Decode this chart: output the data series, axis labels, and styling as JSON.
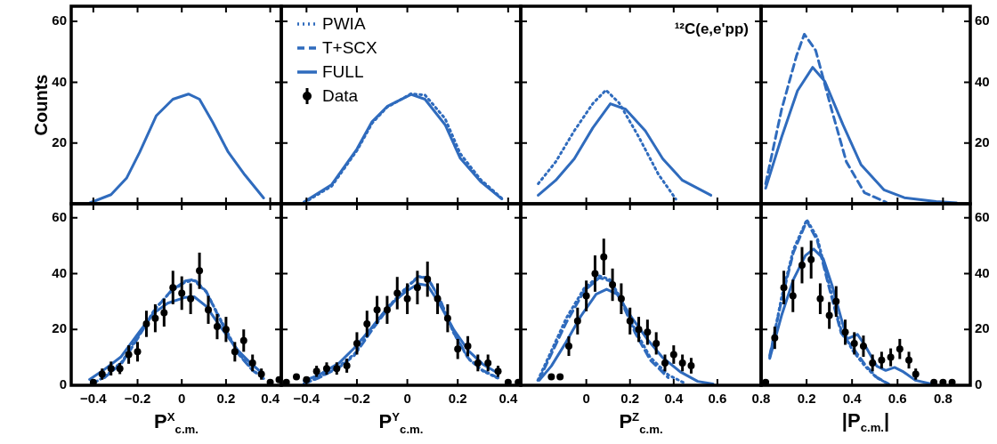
{
  "chart_data": [
    {
      "type": "line",
      "ylabel": "Counts",
      "xlim": [
        -0.5,
        0.45
      ],
      "xticks": [
        -0.4,
        -0.2,
        0,
        0.2,
        0.4
      ],
      "ylim": [
        0,
        65
      ],
      "yticks": [
        20,
        40,
        60
      ],
      "tick_labels": "y",
      "series": [
        {
          "type": "line",
          "color": "#2f6bbd",
          "line_style": "solid",
          "marker": "none",
          "x": [
            -0.415,
            -0.32,
            -0.25,
            -0.19,
            -0.115,
            -0.04,
            0.03,
            0.08,
            0.14,
            0.21,
            0.285,
            0.37
          ],
          "values": [
            0.3,
            3,
            8.4,
            17,
            29,
            34.4,
            36.1,
            34.4,
            26.8,
            17,
            9.5,
            1.9
          ]
        }
      ]
    },
    {
      "type": "line",
      "xlim": [
        -0.5,
        0.45
      ],
      "xticks": [
        -0.4,
        -0.2,
        0,
        0.2,
        0.4
      ],
      "ylim": [
        0,
        65
      ],
      "yticks": [
        20,
        40,
        60
      ],
      "tick_labels": false,
      "legend": "top left",
      "series": [
        {
          "name": "PWIA",
          "type": "line",
          "color": "#2f6bbd",
          "line_style": "dotted",
          "marker": "none",
          "x": [
            -0.41,
            -0.3,
            -0.2,
            -0.14,
            -0.08,
            0.015,
            0.07,
            0.15,
            0.21,
            0.29,
            0.375
          ],
          "values": [
            0.3,
            5.8,
            17.5,
            26.5,
            31.8,
            36.2,
            35.8,
            28,
            16.5,
            8,
            1.8
          ]
        },
        {
          "name": "T+SCX",
          "type": "line",
          "color": "#2f6bbd",
          "line_style": "dashed",
          "marker": "none"
        },
        {
          "name": "FULL",
          "type": "line",
          "color": "#2f6bbd",
          "line_style": "solid",
          "marker": "none",
          "x": [
            -0.41,
            -0.3,
            -0.2,
            -0.14,
            -0.08,
            0.015,
            0.07,
            0.15,
            0.21,
            0.29,
            0.375
          ],
          "values": [
            0.6,
            6.3,
            18,
            27,
            32,
            36,
            34.4,
            26,
            15,
            7.4,
            1.6
          ]
        },
        {
          "name": "Data",
          "type": "scatter",
          "color": "#000000",
          "marker": "circle"
        }
      ]
    },
    {
      "type": "line",
      "annotations": [
        "¹²C(e,e'pp)"
      ],
      "xlim": [
        -0.3,
        0.8
      ],
      "xticks": [
        0,
        0.2,
        0.4,
        0.6,
        0.8
      ],
      "ylim": [
        0,
        65
      ],
      "yticks": [
        20,
        40,
        60
      ],
      "tick_labels": false,
      "series": [
        {
          "type": "line",
          "color": "#2f6bbd",
          "line_style": "dotted",
          "marker": "none",
          "x": [
            -0.22,
            -0.14,
            -0.055,
            0.03,
            0.09,
            0.15,
            0.24,
            0.33,
            0.41
          ],
          "values": [
            6.6,
            13.8,
            24,
            33,
            37.4,
            33.2,
            22,
            9.7,
            1.5
          ]
        },
        {
          "type": "line",
          "color": "#2f6bbd",
          "line_style": "solid",
          "marker": "none",
          "x": [
            -0.22,
            -0.14,
            -0.055,
            0.03,
            0.11,
            0.18,
            0.27,
            0.35,
            0.44,
            0.57
          ],
          "values": [
            2.8,
            7.7,
            14.8,
            25,
            32.9,
            31.1,
            24,
            14.8,
            7.7,
            2.8
          ]
        }
      ]
    },
    {
      "type": "line",
      "xlim": [
        0,
        0.92
      ],
      "xticks": [
        0.2,
        0.4,
        0.6,
        0.8
      ],
      "ylim": [
        0,
        65
      ],
      "yticks": [
        20,
        40,
        60
      ],
      "tick_labels": "y",
      "series": [
        {
          "type": "line",
          "color": "#2f6bbd",
          "line_style": "dashed",
          "marker": "none",
          "x": [
            0.02,
            0.09,
            0.155,
            0.19,
            0.24,
            0.31,
            0.375,
            0.455,
            0.55
          ],
          "values": [
            6.6,
            31,
            48.5,
            55.8,
            50.5,
            31,
            13.8,
            3.6,
            0.5
          ]
        },
        {
          "type": "line",
          "color": "#2f6bbd",
          "line_style": "solid",
          "marker": "none",
          "x": [
            0.02,
            0.09,
            0.16,
            0.227,
            0.28,
            0.36,
            0.44,
            0.54,
            0.63,
            0.77,
            0.86
          ],
          "values": [
            5.1,
            21.9,
            37.2,
            44.9,
            40.3,
            26,
            12.8,
            4.6,
            2,
            0.7,
            0.3
          ]
        }
      ]
    },
    {
      "type": "line",
      "xlabel": "P$^{X}$$_{c.m.}$",
      "xlim": [
        -0.5,
        0.45
      ],
      "xticks": [
        -0.4,
        -0.2,
        0,
        0.2,
        0.4
      ],
      "ylim": [
        0,
        65
      ],
      "yticks": [
        0,
        20,
        40,
        60
      ],
      "series": [
        {
          "type": "line",
          "color": "#2f6bbd",
          "line_style": "dotted",
          "marker": "none",
          "x": [
            -0.41,
            -0.35,
            -0.27,
            -0.19,
            -0.12,
            -0.05,
            0.016,
            0.056,
            0.11,
            0.176,
            0.256,
            0.32,
            0.37
          ],
          "values": [
            0.3,
            3,
            8.5,
            18.5,
            27.5,
            33.5,
            37,
            37.5,
            33.5,
            23.5,
            11.5,
            5.5,
            2.6
          ]
        },
        {
          "type": "line",
          "color": "#2f6bbd",
          "line_style": "dashed",
          "marker": "none",
          "x": [
            -0.35,
            -0.27,
            -0.19,
            -0.12,
            -0.05,
            0.016,
            0.056,
            0.11,
            0.176,
            0.256,
            0.32,
            0.37
          ],
          "values": [
            2.7,
            8,
            18,
            27.2,
            33.7,
            37.4,
            37.9,
            33.7,
            23,
            11.2,
            5.3,
            2.4
          ]
        },
        {
          "type": "line",
          "color": "#2f6bbd",
          "line_style": "solid",
          "marker": "none",
          "x": [
            -0.417,
            -0.356,
            -0.276,
            -0.196,
            -0.13,
            -0.064,
            0.016,
            0.056,
            0.11,
            0.176,
            0.256,
            0.31,
            0.364
          ],
          "values": [
            2.1,
            5.3,
            10.1,
            18.7,
            25.6,
            29.4,
            31.5,
            31.7,
            28.3,
            20.8,
            12.3,
            8,
            4.3
          ]
        },
        {
          "type": "scatter",
          "color": "#000000",
          "marker": "circle",
          "x": [
            -0.4,
            -0.36,
            -0.32,
            -0.28,
            -0.24,
            -0.2,
            -0.16,
            -0.12,
            -0.08,
            -0.04,
            0,
            0.04,
            0.08,
            0.12,
            0.16,
            0.2,
            0.24,
            0.28,
            0.32,
            0.36,
            0.4,
            0.44
          ],
          "values": [
            1,
            4,
            6,
            6,
            11,
            12,
            22,
            24,
            26,
            35,
            33,
            31,
            41,
            27,
            21,
            20,
            12,
            16,
            8,
            4,
            1,
            2
          ],
          "errors": [
            null,
            2,
            2.5,
            2,
            3.3,
            3.5,
            4.7,
            5,
            5,
            6,
            6,
            5.5,
            6.5,
            5,
            4.5,
            4.5,
            3.5,
            4,
            3,
            2,
            null,
            null
          ]
        }
      ]
    },
    {
      "type": "line",
      "xlabel": "P$^{Y}$$_{c.m.}$",
      "xlim": [
        -0.5,
        0.45
      ],
      "xticks": [
        -0.4,
        -0.2,
        0,
        0.2,
        0.4
      ],
      "ylim": [
        0,
        65
      ],
      "yticks": [
        0,
        20,
        40,
        60
      ],
      "tick_labels": "x",
      "series": [
        {
          "type": "line",
          "color": "#2f6bbd",
          "line_style": "dotted",
          "marker": "none",
          "x": [
            -0.41,
            -0.35,
            -0.27,
            -0.21,
            -0.14,
            -0.074,
            -0.004,
            0.043,
            0.08,
            0.126,
            0.185,
            0.243,
            0.3,
            0.36
          ],
          "values": [
            0.6,
            2.9,
            6.8,
            11.2,
            20.3,
            28.3,
            35,
            39,
            38.6,
            31.3,
            18.5,
            9.4,
            5.1,
            2.5
          ]
        },
        {
          "type": "line",
          "color": "#2f6bbd",
          "line_style": "dashed",
          "marker": "none",
          "x": [
            -0.41,
            -0.35,
            -0.27,
            -0.21,
            -0.14,
            -0.074,
            -0.004,
            0.043,
            0.08,
            0.126,
            0.185,
            0.243,
            0.3,
            0.36
          ],
          "values": [
            0.5,
            2.7,
            6.4,
            10.7,
            19.8,
            27.8,
            34.7,
            38.8,
            38.5,
            31.5,
            18.7,
            9.6,
            5.3,
            2.7
          ]
        },
        {
          "type": "line",
          "color": "#2f6bbd",
          "line_style": "solid",
          "marker": "none",
          "x": [
            -0.41,
            -0.35,
            -0.27,
            -0.21,
            -0.14,
            -0.074,
            -0.004,
            0.043,
            0.08,
            0.126,
            0.185,
            0.243,
            0.3,
            0.36
          ],
          "values": [
            1.6,
            3.7,
            8,
            13.4,
            20.8,
            28.3,
            33.7,
            36.3,
            35.8,
            29.4,
            19.8,
            12.3,
            7.5,
            4.3
          ]
        },
        {
          "type": "scatter",
          "color": "#000000",
          "marker": "circle",
          "x": [
            -0.48,
            -0.44,
            -0.4,
            -0.36,
            -0.32,
            -0.28,
            -0.24,
            -0.2,
            -0.16,
            -0.12,
            -0.08,
            -0.04,
            0,
            0.04,
            0.08,
            0.12,
            0.16,
            0.2,
            0.24,
            0.28,
            0.32,
            0.36,
            0.4,
            0.44
          ],
          "values": [
            1,
            3,
            2,
            5,
            6,
            6,
            7,
            15,
            22,
            27,
            27,
            33,
            31,
            35,
            38,
            31,
            24,
            13,
            14,
            8,
            8,
            5,
            1,
            1
          ],
          "errors": [
            null,
            null,
            null,
            2,
            2.2,
            2.2,
            2.5,
            4,
            4.7,
            5,
            5,
            5.8,
            5.5,
            6,
            6.3,
            5.5,
            5,
            3.6,
            3.6,
            3,
            3,
            2,
            null,
            null
          ]
        }
      ]
    },
    {
      "type": "line",
      "xlabel": "P$^{Z}$$_{c.m.}$",
      "xlim": [
        -0.3,
        0.8
      ],
      "xticks": [
        0,
        0.2,
        0.4,
        0.6,
        0.8
      ],
      "ylim": [
        0,
        65
      ],
      "yticks": [
        0,
        20,
        40,
        60
      ],
      "tick_labels": "x",
      "series": [
        {
          "type": "line",
          "color": "#2f6bbd",
          "line_style": "dotted",
          "marker": "none",
          "x": [
            -0.222,
            -0.16,
            -0.092,
            -0.01,
            0.059,
            0.107,
            0.155,
            0.224,
            0.292,
            0.375,
            0.457
          ],
          "values": [
            1.8,
            12.3,
            24,
            34.7,
            39.2,
            37.9,
            31.5,
            19.8,
            10.1,
            3.7,
            0.5
          ]
        },
        {
          "type": "line",
          "color": "#2f6bbd",
          "line_style": "dashed",
          "marker": "none",
          "x": [
            -0.215,
            -0.16,
            -0.092,
            -0.01,
            0.059,
            0.107,
            0.155,
            0.224,
            0.292,
            0.375
          ],
          "values": [
            2.1,
            11.2,
            22.4,
            33.7,
            38.5,
            37.4,
            31,
            18.7,
            9.1,
            2.7
          ]
        },
        {
          "type": "line",
          "color": "#2f6bbd",
          "line_style": "solid",
          "marker": "none",
          "x": [
            -0.215,
            -0.16,
            -0.092,
            -0.023,
            0.045,
            0.093,
            0.141,
            0.21,
            0.278,
            0.347,
            0.43,
            0.51,
            0.58
          ],
          "values": [
            1.8,
            6.9,
            15.5,
            25,
            32.6,
            34.4,
            32.6,
            24,
            16.6,
            10.1,
            4.8,
            1.4,
            0.5
          ]
        },
        {
          "type": "scatter",
          "color": "#000000",
          "marker": "circle",
          "x": [
            -0.16,
            -0.12,
            -0.08,
            -0.04,
            0,
            0.04,
            0.08,
            0.12,
            0.16,
            0.2,
            0.24,
            0.28,
            0.32,
            0.36,
            0.4,
            0.44,
            0.48
          ],
          "values": [
            3,
            3,
            14,
            23,
            32,
            40,
            46,
            36,
            31,
            23,
            20,
            19,
            15,
            8,
            11,
            8,
            7
          ],
          "errors": [
            null,
            null,
            3.5,
            4.8,
            5.5,
            6.5,
            6.5,
            5.8,
            5.5,
            4.8,
            4.5,
            4.5,
            4,
            3,
            3.3,
            3,
            2.8
          ]
        }
      ]
    },
    {
      "type": "line",
      "xlabel": "|P$_{c.m.}$|",
      "xlim": [
        0,
        0.92
      ],
      "xticks": [
        0.2,
        0.4,
        0.6,
        0.8
      ],
      "ylim": [
        0,
        65
      ],
      "yticks": [
        0,
        20,
        40,
        60
      ],
      "series": [
        {
          "type": "line",
          "color": "#2f6bbd",
          "line_style": "dotted",
          "marker": "none",
          "x": [
            0.038,
            0.09,
            0.142,
            0.201,
            0.247,
            0.3,
            0.352,
            0.404,
            0.456,
            0.508,
            0.56
          ],
          "values": [
            10.1,
            31.5,
            48.6,
            59.3,
            52.9,
            35.8,
            19.8,
            12.3,
            6.9,
            2.7,
            0.5
          ]
        },
        {
          "type": "line",
          "color": "#2f6bbd",
          "line_style": "dashed",
          "marker": "none",
          "x": [
            0.038,
            0.09,
            0.142,
            0.201,
            0.247,
            0.3,
            0.352,
            0.404,
            0.456,
            0.508,
            0.56
          ],
          "values": [
            10.7,
            30.4,
            47.5,
            58.8,
            51.8,
            34.7,
            18.7,
            13.4,
            7.5,
            2.9,
            0.5
          ]
        },
        {
          "type": "line",
          "color": "#2f6bbd",
          "line_style": "solid",
          "marker": "none",
          "x": [
            0.038,
            0.09,
            0.142,
            0.195,
            0.231,
            0.273,
            0.312,
            0.352,
            0.378,
            0.424,
            0.456,
            0.508,
            0.548,
            0.587,
            0.626,
            0.678,
            0.757
          ],
          "values": [
            9.6,
            25,
            37.9,
            46.5,
            48.8,
            45.4,
            35.8,
            24,
            16.6,
            18.2,
            14.4,
            6.9,
            5.3,
            6.4,
            4.8,
            1.8,
            0.3
          ]
        },
        {
          "type": "scatter",
          "color": "#000000",
          "marker": "circle",
          "x": [
            0.02,
            0.06,
            0.1,
            0.14,
            0.18,
            0.22,
            0.26,
            0.3,
            0.33,
            0.37,
            0.41,
            0.45,
            0.49,
            0.53,
            0.57,
            0.61,
            0.65,
            0.68,
            0.76,
            0.8,
            0.84
          ],
          "values": [
            1,
            17,
            35,
            32,
            43,
            45,
            31,
            25,
            30,
            19,
            15,
            14,
            8,
            9,
            10,
            13,
            9,
            4,
            1,
            1,
            1
          ],
          "errors": [
            null,
            4,
            6,
            5.8,
            6.5,
            6.8,
            5.5,
            4.8,
            5.5,
            4.5,
            4,
            3.8,
            3,
            3,
            3.2,
            3.6,
            3,
            2,
            null,
            null,
            null
          ]
        }
      ]
    }
  ]
}
